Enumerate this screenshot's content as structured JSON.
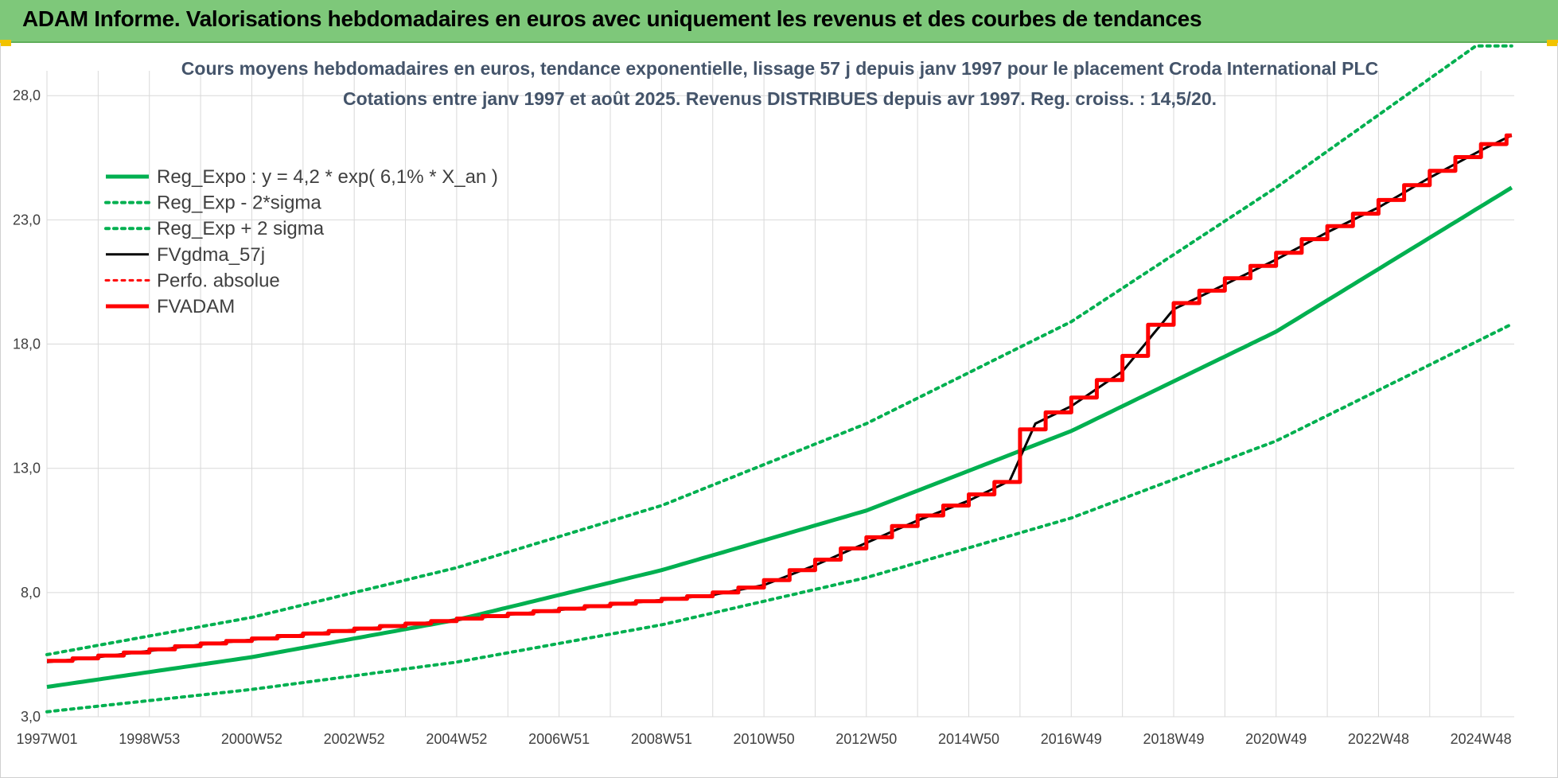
{
  "header": {
    "title": "ADAM Informe. Valorisations hebdomadaires en euros avec uniquement les revenus et des courbes de tendances"
  },
  "chart_data": {
    "type": "line",
    "title_line1": "Cours moyens hebdomadaires en euros, tendance exponentielle, lissage 57 j depuis janv 1997 pour le placement Croda International PLC",
    "title_line2": "Cotations entre janv 1997 et août 2025.  Revenus DISTRIBUES depuis avr 1997. Reg. croiss. : 14,5/20.",
    "x_tick_labels": [
      "1997W01",
      "1998W53",
      "2000W52",
      "2002W52",
      "2004W52",
      "2006W51",
      "2008W51",
      "2010W50",
      "2012W50",
      "2014W50",
      "2016W49",
      "2018W49",
      "2020W49",
      "2022W48",
      "2024W48"
    ],
    "x_tick_years": [
      1997.0,
      1999.0,
      2001.0,
      2003.0,
      2005.0,
      2007.0,
      2009.0,
      2011.0,
      2013.0,
      2015.0,
      2017.0,
      2019.0,
      2021.0,
      2023.0,
      2025.0
    ],
    "x_range": [
      1997.0,
      2025.65
    ],
    "y_tick_labels": [
      "3,0",
      "8,0",
      "13,0",
      "18,0",
      "23,0",
      "28,0"
    ],
    "y_ticks": [
      3,
      8,
      13,
      18,
      23,
      28
    ],
    "ylim": [
      3,
      29
    ],
    "grid": true,
    "legend_position": "top-left",
    "series": [
      {
        "name": "Reg_Expo : y = 4,2 * exp( 6,1% *  X_an )",
        "color": "#00b050",
        "style": "solid",
        "width": 5,
        "x": [
          1997.0,
          2001.0,
          2005.0,
          2009.0,
          2013.0,
          2017.0,
          2021.0,
          2025.6
        ],
        "y": [
          4.2,
          5.4,
          6.9,
          8.9,
          11.3,
          14.5,
          18.5,
          24.3
        ]
      },
      {
        "name": "Reg_Exp - 2*sigma",
        "color": "#00b050",
        "style": "dotted",
        "width": 4,
        "x": [
          1997.0,
          2001.0,
          2005.0,
          2009.0,
          2013.0,
          2017.0,
          2021.0,
          2025.6
        ],
        "y": [
          3.2,
          4.1,
          5.2,
          6.7,
          8.6,
          11.0,
          14.1,
          18.8
        ]
      },
      {
        "name": "Reg_Exp + 2 sigma",
        "color": "#00b050",
        "style": "dotted",
        "width": 4,
        "x": [
          1997.0,
          2001.0,
          2005.0,
          2009.0,
          2013.0,
          2017.0,
          2021.0,
          2024.9,
          2025.6
        ],
        "y": [
          5.5,
          7.0,
          9.0,
          11.5,
          14.8,
          18.9,
          24.3,
          30.0,
          30.0
        ]
      },
      {
        "name": "FVgdma_57j",
        "color": "#000000",
        "style": "solid",
        "width": 3,
        "x": [
          1997.0,
          1998.0,
          2000.0,
          2002.0,
          2004.0,
          2006.0,
          2008.0,
          2010.0,
          2011.0,
          2012.0,
          2013.0,
          2014.0,
          2015.0,
          2015.8,
          2016.3,
          2017.0,
          2018.0,
          2019.0,
          2020.0,
          2021.0,
          2022.0,
          2023.0,
          2024.0,
          2025.0,
          2025.6
        ],
        "y": [
          5.2,
          5.4,
          5.9,
          6.3,
          6.7,
          7.1,
          7.5,
          7.9,
          8.3,
          9.1,
          10.0,
          10.9,
          11.7,
          12.5,
          14.8,
          15.5,
          16.9,
          19.4,
          20.4,
          21.4,
          22.5,
          23.5,
          24.7,
          25.8,
          26.4
        ]
      },
      {
        "name": "Perfo. absolue",
        "color": "#ff0000",
        "style": "dotted",
        "width": 3,
        "x": [],
        "y": []
      },
      {
        "name": "FVADAM",
        "color": "#ff0000",
        "style": "solid",
        "width": 5,
        "x": [
          1997.0,
          1998.0,
          2000.0,
          2002.0,
          2004.0,
          2006.0,
          2008.0,
          2010.0,
          2011.0,
          2012.0,
          2013.0,
          2014.0,
          2015.0,
          2015.8,
          2016.3,
          2017.0,
          2018.0,
          2019.0,
          2020.0,
          2021.0,
          2022.0,
          2023.0,
          2024.0,
          2025.0,
          2025.6
        ],
        "y": [
          5.2,
          5.4,
          5.9,
          6.3,
          6.7,
          7.1,
          7.5,
          7.9,
          8.3,
          9.1,
          10.0,
          10.9,
          11.7,
          12.5,
          14.8,
          15.5,
          16.9,
          19.4,
          20.4,
          21.4,
          22.5,
          23.5,
          24.7,
          25.8,
          26.4
        ]
      }
    ]
  }
}
